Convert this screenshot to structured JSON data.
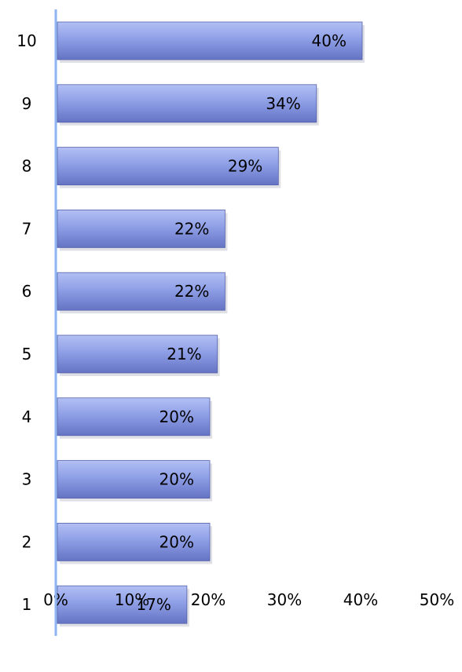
{
  "chart_data": {
    "type": "bar",
    "orientation": "horizontal",
    "categories": [
      "10",
      "9",
      "8",
      "7",
      "6",
      "5",
      "4",
      "3",
      "2",
      "1"
    ],
    "values": [
      40,
      34,
      29,
      22,
      22,
      21,
      20,
      20,
      20,
      17
    ],
    "data_labels": [
      "40%",
      "34%",
      "29%",
      "22%",
      "22%",
      "21%",
      "20%",
      "20%",
      "20%",
      "17%"
    ],
    "x_ticks": [
      0,
      10,
      20,
      30,
      40,
      50
    ],
    "x_tick_labels": [
      "0%",
      "10%",
      "20%",
      "30%",
      "40%",
      "50%"
    ],
    "xlim": [
      0,
      50
    ],
    "grid": false,
    "legend": "none",
    "colors": {
      "bar": "#8e9fe6",
      "bar_light": "#b3c0f4",
      "bar_dark": "#6573c4",
      "bar_edge": "#5561aa",
      "axis": "#8fb3f0"
    }
  }
}
